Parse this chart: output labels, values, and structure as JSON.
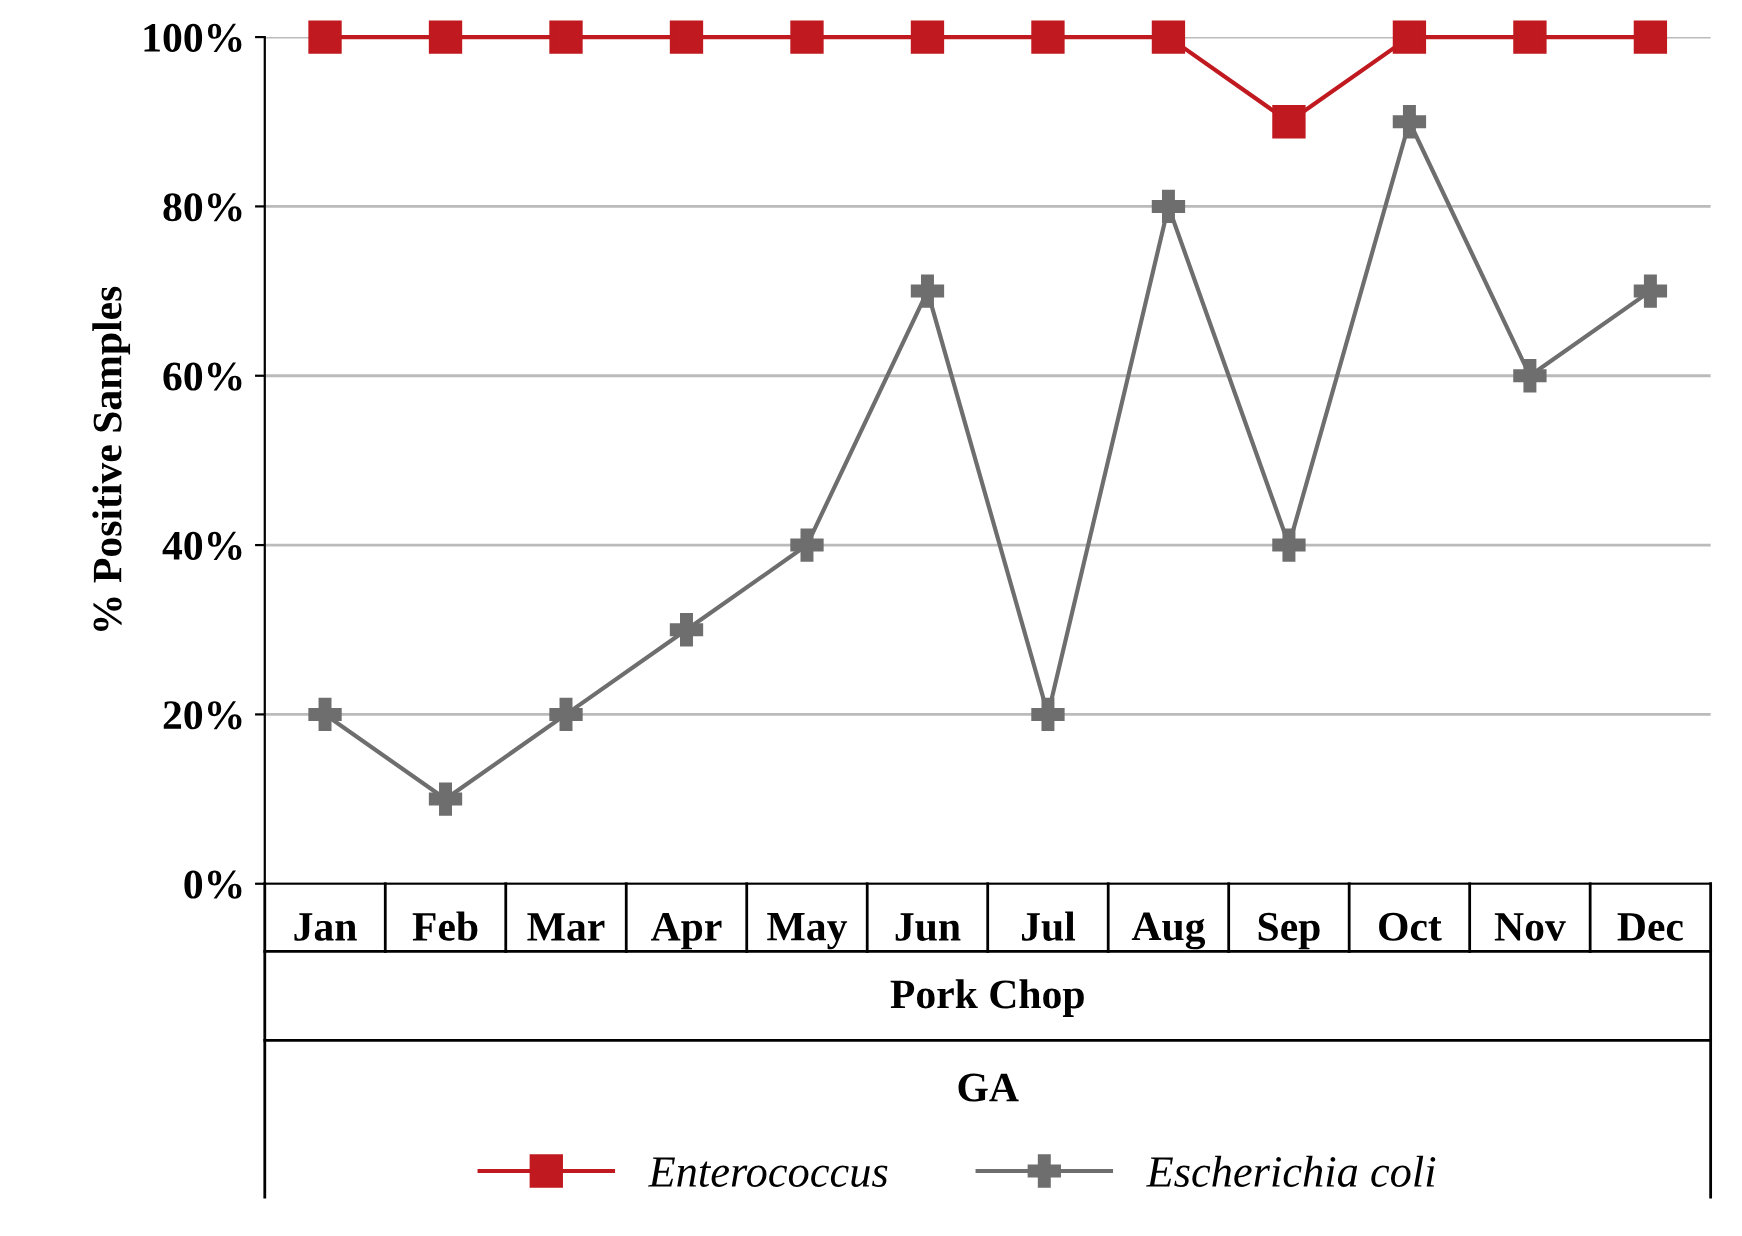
{
  "chart_data": {
    "type": "line",
    "ylabel": "% Positive Samples",
    "xlabel": "Pork Chop",
    "annotations": [
      "GA"
    ],
    "categories": [
      "Jan",
      "Feb",
      "Mar",
      "Apr",
      "May",
      "Jun",
      "Jul",
      "Aug",
      "Sep",
      "Oct",
      "Nov",
      "Dec"
    ],
    "series": [
      {
        "name": "Enterococcus",
        "color": "#c0191f",
        "marker": "square",
        "values": [
          100,
          100,
          100,
          100,
          100,
          100,
          100,
          100,
          90,
          100,
          100,
          100
        ]
      },
      {
        "name": "Escherichia coli",
        "color": "#6e6e6e",
        "marker": "cross",
        "values": [
          20,
          10,
          20,
          30,
          40,
          70,
          20,
          80,
          40,
          90,
          60,
          70
        ]
      }
    ],
    "ylim": [
      0,
      100
    ],
    "yticks": [
      {
        "value": 0,
        "label": "0%"
      },
      {
        "value": 20,
        "label": "20%"
      },
      {
        "value": 40,
        "label": "40%"
      },
      {
        "value": 60,
        "label": "60%"
      },
      {
        "value": 80,
        "label": "80%"
      },
      {
        "value": 100,
        "label": "100%"
      }
    ],
    "grid": "y",
    "legend": "bottom",
    "line_style": "solid"
  }
}
